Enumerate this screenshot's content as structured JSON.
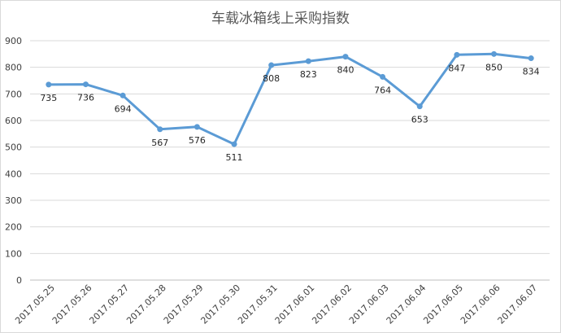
{
  "chart_data": {
    "type": "line",
    "title": "车载冰箱线上采购指数",
    "categories": [
      "2017.05.25",
      "2017.05.26",
      "2017.05.27",
      "2017.05.28",
      "2017.05.29",
      "2017.05.30",
      "2017.05.31",
      "2017.06.01",
      "2017.06.02",
      "2017.06.03",
      "2017.06.04",
      "2017.06.05",
      "2017.06.06",
      "2017.06.07"
    ],
    "series": [
      {
        "values": [
          735,
          736,
          694,
          567,
          576,
          511,
          808,
          823,
          840,
          764,
          653,
          847,
          850,
          834
        ]
      }
    ],
    "data_labels": [
      "735",
      "736",
      "694",
      "567",
      "576",
      "511",
      "808",
      "823",
      "840",
      "764",
      "653",
      "847",
      "850",
      "834"
    ],
    "yticks": [
      "0",
      "100",
      "200",
      "300",
      "400",
      "500",
      "600",
      "700",
      "800",
      "900"
    ],
    "ylim": [
      0,
      900
    ],
    "grid": true,
    "legend": "none",
    "colors": {
      "line": "#5b9bd5",
      "grid": "#d9d9d9",
      "axis": "#bfbfbf"
    }
  }
}
